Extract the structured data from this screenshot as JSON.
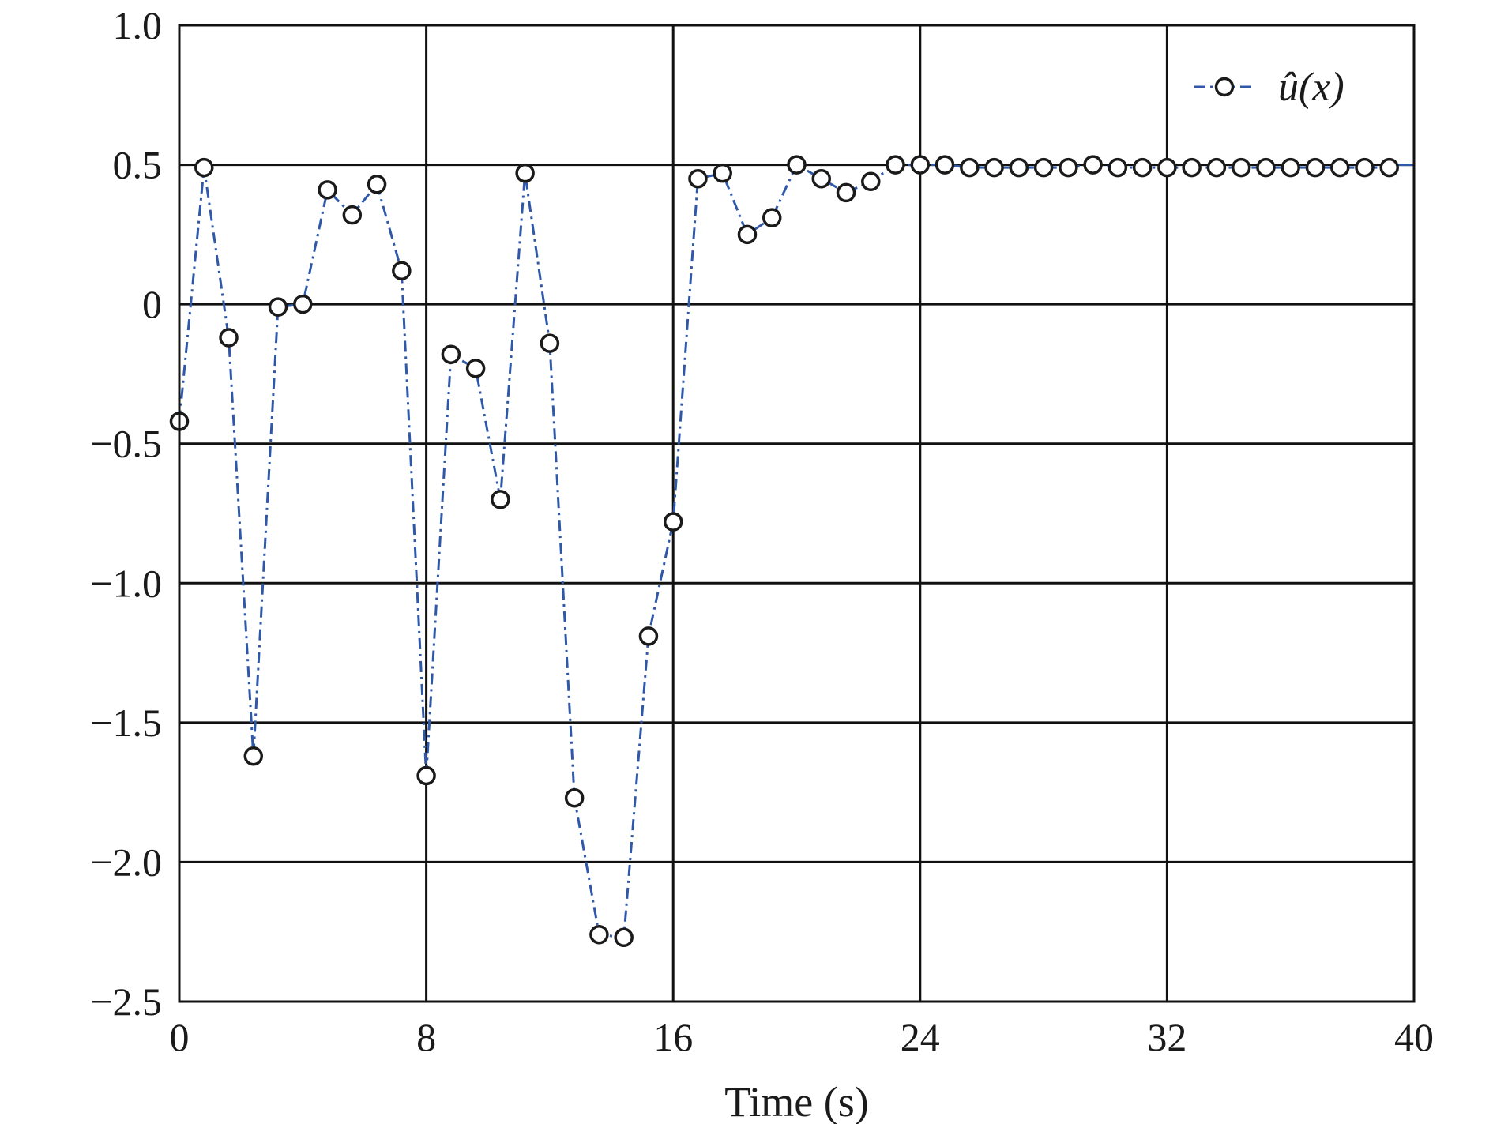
{
  "chart_data": {
    "type": "line",
    "title": "",
    "xlabel": "Time (s)",
    "ylabel": "",
    "xlim": [
      0,
      40
    ],
    "ylim": [
      -2.5,
      1.0
    ],
    "x_ticks": [
      0,
      8,
      16,
      24,
      32,
      40
    ],
    "x_tick_labels": [
      "0",
      "8",
      "16",
      "24",
      "32",
      "40"
    ],
    "y_ticks": [
      1.0,
      0.5,
      0,
      -0.5,
      -1.0,
      -1.5,
      -2.0,
      -2.5
    ],
    "y_tick_labels": [
      "1.0",
      "0.5",
      "0",
      "−0.5",
      "−1.0",
      "−1.5",
      "−2.0",
      "−2.5"
    ],
    "grid": true,
    "legend_position": "top-right",
    "series": [
      {
        "name": "û(x)",
        "color": "#2f58a8",
        "marker_color": "#1a1a1a",
        "line_style": "dash-dot",
        "marker": "open-circle",
        "x": [
          0,
          0.8,
          1.6,
          2.4,
          3.2,
          4.0,
          4.8,
          5.6,
          6.4,
          7.2,
          8.0,
          8.8,
          9.6,
          10.4,
          11.2,
          12.0,
          12.8,
          13.6,
          14.4,
          15.2,
          16.0,
          16.8,
          17.6,
          18.4,
          19.2,
          20.0,
          20.8,
          21.6,
          22.4,
          23.2,
          24.0,
          24.8,
          25.6,
          26.4,
          27.2,
          28.0,
          28.8,
          29.6,
          30.4,
          31.2,
          32.0,
          32.8,
          33.6,
          34.4,
          35.2,
          36.0,
          36.8,
          37.6,
          38.4,
          39.2
        ],
        "y": [
          -0.42,
          0.49,
          -0.12,
          -1.62,
          -0.01,
          0.0,
          0.41,
          0.32,
          0.43,
          0.12,
          -1.69,
          -0.18,
          -0.23,
          -0.7,
          0.47,
          -0.14,
          -1.77,
          -2.26,
          -2.27,
          -1.19,
          -0.78,
          0.45,
          0.47,
          0.25,
          0.31,
          0.5,
          0.45,
          0.4,
          0.44,
          0.5,
          0.5,
          0.5,
          0.49,
          0.49,
          0.49,
          0.49,
          0.49,
          0.5,
          0.49,
          0.49,
          0.49,
          0.49,
          0.49,
          0.49,
          0.49,
          0.49,
          0.49,
          0.49,
          0.49,
          0.49
        ],
        "final_line_to_x": 40,
        "final_line_y": 0.5
      }
    ]
  }
}
